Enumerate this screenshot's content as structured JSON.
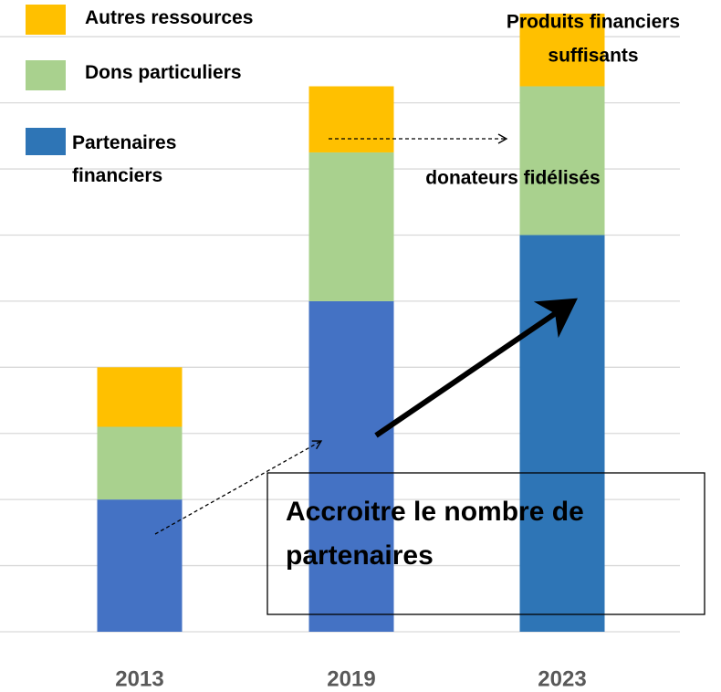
{
  "chart_data": {
    "type": "bar",
    "stacked": true,
    "categories": [
      "2013",
      "2019",
      "2023"
    ],
    "series": [
      {
        "name": "Partenaires financiers",
        "color": "#2e75b6",
        "colors": [
          "#4472c4",
          "#4472c4",
          "#2e75b6"
        ],
        "values": [
          2,
          5,
          6
        ]
      },
      {
        "name": "Dons particuliers",
        "color": "#a9d18e",
        "values": [
          1.1,
          2.25,
          2.25
        ]
      },
      {
        "name": "Autres ressources",
        "color": "#ffc000",
        "values": [
          0.9,
          1,
          1.1
        ]
      }
    ],
    "ylim": [
      0,
      9.5
    ],
    "yticks": [
      0,
      1,
      2,
      3,
      4,
      5,
      6,
      7,
      8,
      9
    ],
    "grid": true,
    "annotations": [
      {
        "lines": [
          "Produits financiers",
          "suffisants"
        ]
      },
      {
        "lines": [
          "donateurs fidélisés"
        ]
      },
      {
        "lines": [
          "Accroitre le nombre de",
          "partenaires"
        ]
      }
    ]
  }
}
